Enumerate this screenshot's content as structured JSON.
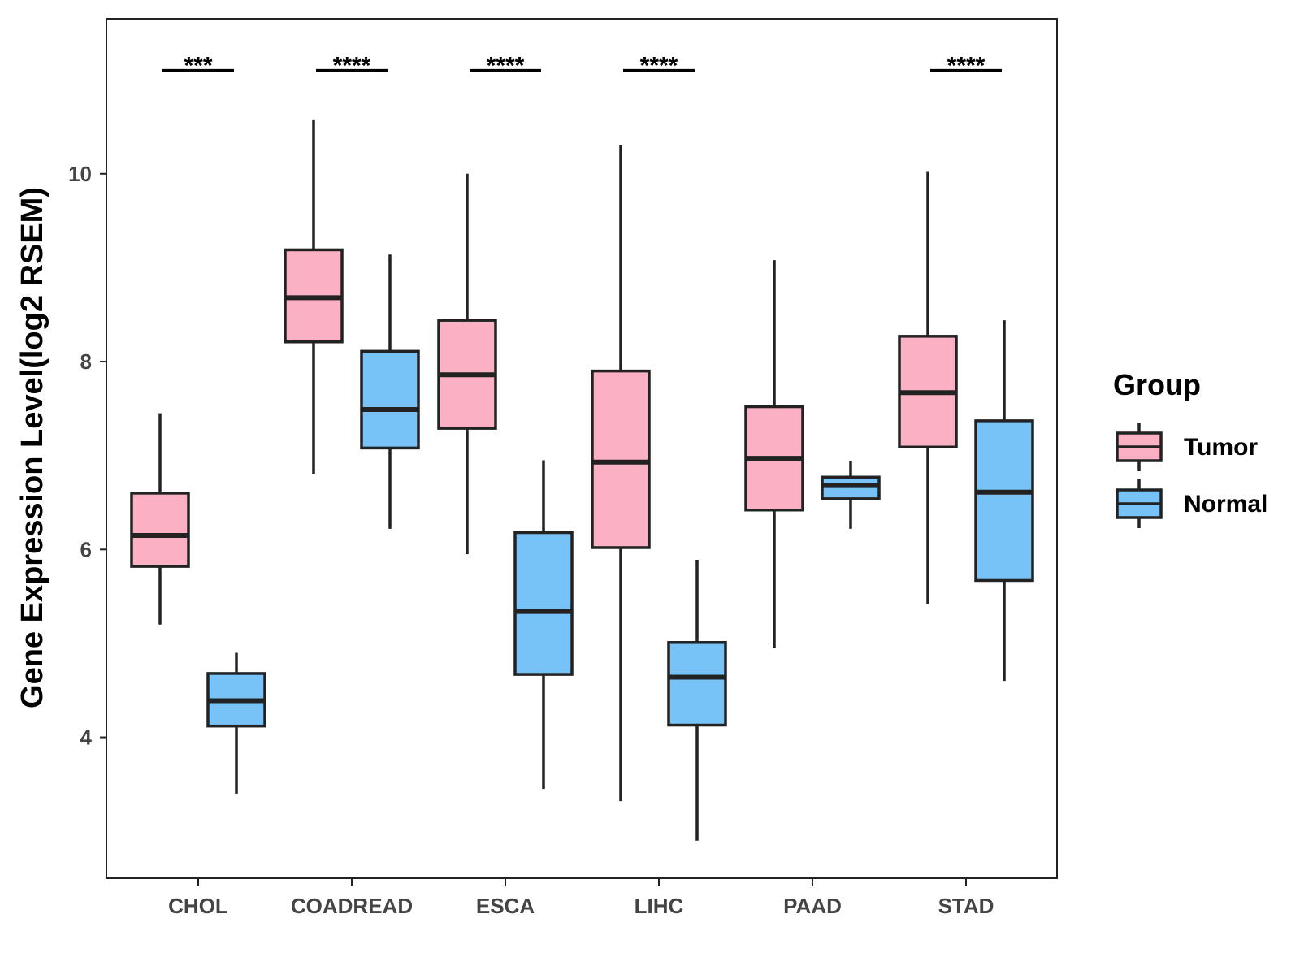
{
  "chart_data": {
    "type": "boxplot",
    "title": "",
    "xlabel": "",
    "ylabel": "Gene Expression Level(log2 RSEM)",
    "ylim": [
      2.5,
      11.65
    ],
    "yticks": [
      4,
      6,
      8,
      10
    ],
    "grid": false,
    "categories": [
      "CHOL",
      "COADREAD",
      "ESCA",
      "LIHC",
      "PAAD",
      "STAD"
    ],
    "legend": {
      "title": "Group",
      "position": "right",
      "entries": [
        {
          "name": "Tumor",
          "color": "#FBB0C3"
        },
        {
          "name": "Normal",
          "color": "#77C3F8"
        }
      ]
    },
    "series": [
      {
        "name": "Tumor",
        "color": "#FBB0C3",
        "boxes": [
          {
            "category": "CHOL",
            "min": 5.2,
            "q1": 5.82,
            "median": 6.15,
            "q3": 6.6,
            "max": 7.45
          },
          {
            "category": "COADREAD",
            "min": 6.8,
            "q1": 8.21,
            "median": 8.68,
            "q3": 9.19,
            "max": 10.57
          },
          {
            "category": "ESCA",
            "min": 5.95,
            "q1": 7.29,
            "median": 7.86,
            "q3": 8.44,
            "max": 10.0
          },
          {
            "category": "LIHC",
            "min": 3.32,
            "q1": 6.02,
            "median": 6.93,
            "q3": 7.9,
            "max": 10.31
          },
          {
            "category": "PAAD",
            "min": 4.95,
            "q1": 6.42,
            "median": 6.97,
            "q3": 7.52,
            "max": 9.08
          },
          {
            "category": "STAD",
            "min": 5.42,
            "q1": 7.09,
            "median": 7.67,
            "q3": 8.27,
            "max": 10.02
          }
        ]
      },
      {
        "name": "Normal",
        "color": "#77C3F8",
        "boxes": [
          {
            "category": "CHOL",
            "min": 3.4,
            "q1": 4.12,
            "median": 4.39,
            "q3": 4.68,
            "max": 4.9
          },
          {
            "category": "COADREAD",
            "min": 6.22,
            "q1": 7.08,
            "median": 7.49,
            "q3": 8.11,
            "max": 9.14
          },
          {
            "category": "ESCA",
            "min": 3.45,
            "q1": 4.67,
            "median": 5.34,
            "q3": 6.18,
            "max": 6.95
          },
          {
            "category": "LIHC",
            "min": 2.9,
            "q1": 4.13,
            "median": 4.64,
            "q3": 5.01,
            "max": 5.89
          },
          {
            "category": "PAAD",
            "min": 6.22,
            "q1": 6.54,
            "median": 6.68,
            "q3": 6.77,
            "max": 6.94
          },
          {
            "category": "STAD",
            "min": 4.6,
            "q1": 5.67,
            "median": 6.61,
            "q3": 7.37,
            "max": 8.44
          }
        ]
      }
    ],
    "significance": [
      {
        "category": "CHOL",
        "label": "***"
      },
      {
        "category": "COADREAD",
        "label": "****"
      },
      {
        "category": "ESCA",
        "label": "****"
      },
      {
        "category": "LIHC",
        "label": "****"
      },
      {
        "category": "STAD",
        "label": "****"
      }
    ],
    "significance_y": 11.1
  }
}
